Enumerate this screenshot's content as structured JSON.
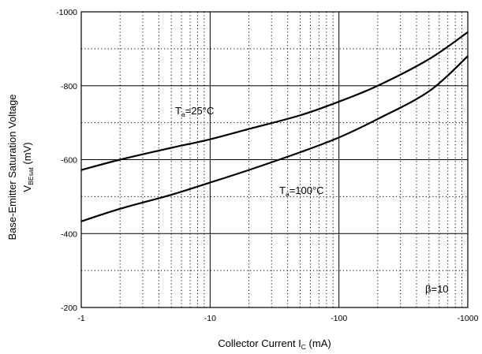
{
  "chart_data": {
    "type": "line",
    "xscale": "log",
    "xlim": [
      -1,
      -1000
    ],
    "ylim": [
      -200,
      -1000
    ],
    "x_ticks": [
      "-1",
      "-10",
      "-100",
      "-1000"
    ],
    "y_ticks": [
      "-200",
      "-400",
      "-600",
      "-800",
      "-1000"
    ],
    "xlabel": {
      "main": "Collector Current  I",
      "sub": "C",
      "unit": " (mA)"
    },
    "ylabel": {
      "line1": "Base-Emitter Saturation Voltage",
      "symbol": "V",
      "sub": "BEsat",
      "unit": "    (mV)"
    },
    "grid": true,
    "series": [
      {
        "label": {
          "prefix": "T",
          "sub": "a",
          "suffix": "=25°C"
        },
        "points": [
          [
            -1,
            -572
          ],
          [
            -2,
            -600
          ],
          [
            -5,
            -632
          ],
          [
            -10,
            -655
          ],
          [
            -20,
            -683
          ],
          [
            -50,
            -720
          ],
          [
            -100,
            -757
          ],
          [
            -200,
            -800
          ],
          [
            -500,
            -872
          ],
          [
            -1000,
            -945
          ]
        ]
      },
      {
        "label": {
          "prefix": "T",
          "sub": "a",
          "suffix": "=100°C"
        },
        "points": [
          [
            -1,
            -433
          ],
          [
            -2,
            -467
          ],
          [
            -5,
            -505
          ],
          [
            -10,
            -538
          ],
          [
            -20,
            -572
          ],
          [
            -50,
            -620
          ],
          [
            -100,
            -660
          ],
          [
            -200,
            -710
          ],
          [
            -500,
            -785
          ],
          [
            -1000,
            -880
          ]
        ]
      }
    ],
    "annotation": "β=10"
  }
}
